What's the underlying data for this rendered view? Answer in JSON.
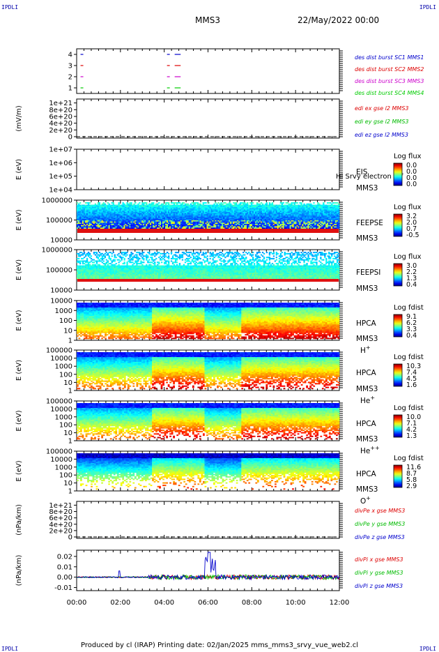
{
  "corner_label": "IPDLI",
  "header": {
    "spacecraft": "MMS3",
    "date": "22/May/2022 00:00"
  },
  "footer": {
    "text": "Produced by cl (IRAP)   Printing date: 02/Jan/2025   mms_mms3_srvy_vue_web2.cl"
  },
  "colors": {
    "mms1": "#0000cc",
    "mms2": "#dd0000",
    "mms3": "#cc00cc",
    "mms4": "#00cc00",
    "x": "#dd0000",
    "y": "#00bb00",
    "z": "#0000cc"
  },
  "chart_data": [
    {
      "id": "burst",
      "type": "line",
      "ylabel": "",
      "yticks": [
        "1",
        "2",
        "3",
        "4"
      ],
      "ylim": [
        0.5,
        4.5
      ],
      "series": [
        {
          "name": "des dist burst SC1 MMS1",
          "color": "mms1",
          "level": 1,
          "intervals": [
            [
              0.05,
              0.25
            ],
            [
              4.0,
              4.15
            ],
            [
              4.35,
              4.75
            ]
          ]
        },
        {
          "name": "des dist burst SC2 MMS2",
          "color": "mms2",
          "level": 2,
          "intervals": [
            [
              0.05,
              0.25
            ],
            [
              4.0,
              4.15
            ],
            [
              4.35,
              4.75
            ]
          ]
        },
        {
          "name": "des dist burst SC3 MMS3",
          "color": "mms3",
          "level": 3,
          "intervals": [
            [
              0.05,
              0.25
            ],
            [
              4.0,
              4.15
            ],
            [
              4.35,
              4.75
            ]
          ]
        },
        {
          "name": "des dist burst SC4 MMS4",
          "color": "mms4",
          "level": 4,
          "intervals": [
            [
              0.05,
              0.25
            ],
            [
              4.0,
              4.15
            ],
            [
              4.35,
              4.75
            ]
          ]
        }
      ],
      "legend_order": [
        0,
        1,
        2,
        3
      ]
    },
    {
      "id": "edi",
      "type": "line",
      "ylabel": "(mV/m)",
      "yticks": [
        "0",
        "2e+20",
        "4e+20",
        "6e+20",
        "8e+20",
        "1e+21"
      ],
      "series": [
        {
          "name": "edi ex gse l2 MMS3",
          "color": "x"
        },
        {
          "name": "edi ey gse l2 MMS3",
          "color": "y"
        },
        {
          "name": "edi ez gse l2 MMS3",
          "color": "z"
        }
      ]
    },
    {
      "id": "eis",
      "type": "heatmap",
      "ylabel": "E (eV)",
      "yticks": [
        "1e+04",
        "1e+05",
        "1e+06",
        "1e+07"
      ],
      "instrument": "EIS",
      "species": "",
      "spacecraft": "MMS3",
      "overlay": "Hi Srvy electron tof",
      "colorbar": {
        "title": "Log flux",
        "ticks": [
          "0.0",
          "0.0",
          "0.0",
          "0.0"
        ]
      }
    },
    {
      "id": "feepse",
      "type": "heatmap",
      "ylabel": "E (eV)",
      "yticks": [
        "10000",
        "100000",
        "1000000"
      ],
      "instrument": "FEEPSE",
      "species": "",
      "spacecraft": "MMS3",
      "colorbar": {
        "title": "Log flux",
        "ticks": [
          "3.2",
          "2.0",
          "0.7",
          "-0.5"
        ]
      }
    },
    {
      "id": "feepsi",
      "type": "heatmap",
      "ylabel": "E (eV)",
      "yticks": [
        "10000",
        "100000",
        "1000000"
      ],
      "instrument": "FEEPSI",
      "species": "",
      "spacecraft": "MMS3",
      "colorbar": {
        "title": "Log flux",
        "ticks": [
          "3.0",
          "2.2",
          "1.3",
          "0.4"
        ]
      }
    },
    {
      "id": "hpca_h",
      "type": "heatmap",
      "ylabel": "E (eV)",
      "yticks": [
        "1",
        "10",
        "100",
        "1000",
        "10000"
      ],
      "instrument": "HPCA",
      "species": "H",
      "species_sup": "+",
      "spacecraft": "MMS3",
      "colorbar": {
        "title": "Log fdist",
        "ticks": [
          "9.1",
          "6.2",
          "3.3",
          "0.4"
        ]
      }
    },
    {
      "id": "hpca_he1",
      "type": "heatmap",
      "ylabel": "E (eV)",
      "yticks": [
        "1",
        "10",
        "100",
        "1000",
        "10000",
        "100000"
      ],
      "instrument": "HPCA",
      "species": "He",
      "species_sup": "+",
      "spacecraft": "MMS3",
      "colorbar": {
        "title": "Log fdist",
        "ticks": [
          "10.3",
          "7.4",
          "4.5",
          "1.6"
        ]
      }
    },
    {
      "id": "hpca_he2",
      "type": "heatmap",
      "ylabel": "E (eV)",
      "yticks": [
        "1",
        "10",
        "100",
        "1000",
        "10000",
        "100000"
      ],
      "instrument": "HPCA",
      "species": "He",
      "species_sup": "++",
      "spacecraft": "MMS3",
      "colorbar": {
        "title": "Log fdist",
        "ticks": [
          "10.0",
          "7.1",
          "4.2",
          "1.3"
        ]
      }
    },
    {
      "id": "hpca_o",
      "type": "heatmap",
      "ylabel": "E (eV)",
      "yticks": [
        "1",
        "10",
        "100",
        "1000",
        "10000",
        "100000"
      ],
      "instrument": "HPCA",
      "species": "O",
      "species_sup": "+",
      "spacecraft": "MMS3",
      "colorbar": {
        "title": "Log fdist",
        "ticks": [
          "11.6",
          "8.7",
          "5.8",
          "2.9"
        ]
      }
    },
    {
      "id": "divpe",
      "type": "line",
      "ylabel": "(nPa/km)",
      "yticks": [
        "0",
        "2e+20",
        "4e+20",
        "6e+20",
        "8e+20",
        "1e+21"
      ],
      "series": [
        {
          "name": "divPe x gse MMS3",
          "color": "x"
        },
        {
          "name": "divPe y gse MMS3",
          "color": "y"
        },
        {
          "name": "divPe z gse MMS3",
          "color": "z"
        }
      ]
    },
    {
      "id": "divpi",
      "type": "line",
      "ylabel": "(nPa/km)",
      "yticks": [
        "-0.01",
        "0.00",
        "0.01",
        "0.02"
      ],
      "ylim": [
        -0.013,
        0.026
      ],
      "series": [
        {
          "name": "divPi x gse MMS3",
          "color": "x"
        },
        {
          "name": "divPi y gse MMS3",
          "color": "y"
        },
        {
          "name": "divPi z gse MMS3",
          "color": "z"
        }
      ]
    }
  ],
  "x_axis": {
    "xlim_hours": [
      0,
      12
    ],
    "ticks": [
      "00:00",
      "02:00",
      "04:00",
      "06:00",
      "08:00",
      "10:00",
      "12:00"
    ]
  }
}
